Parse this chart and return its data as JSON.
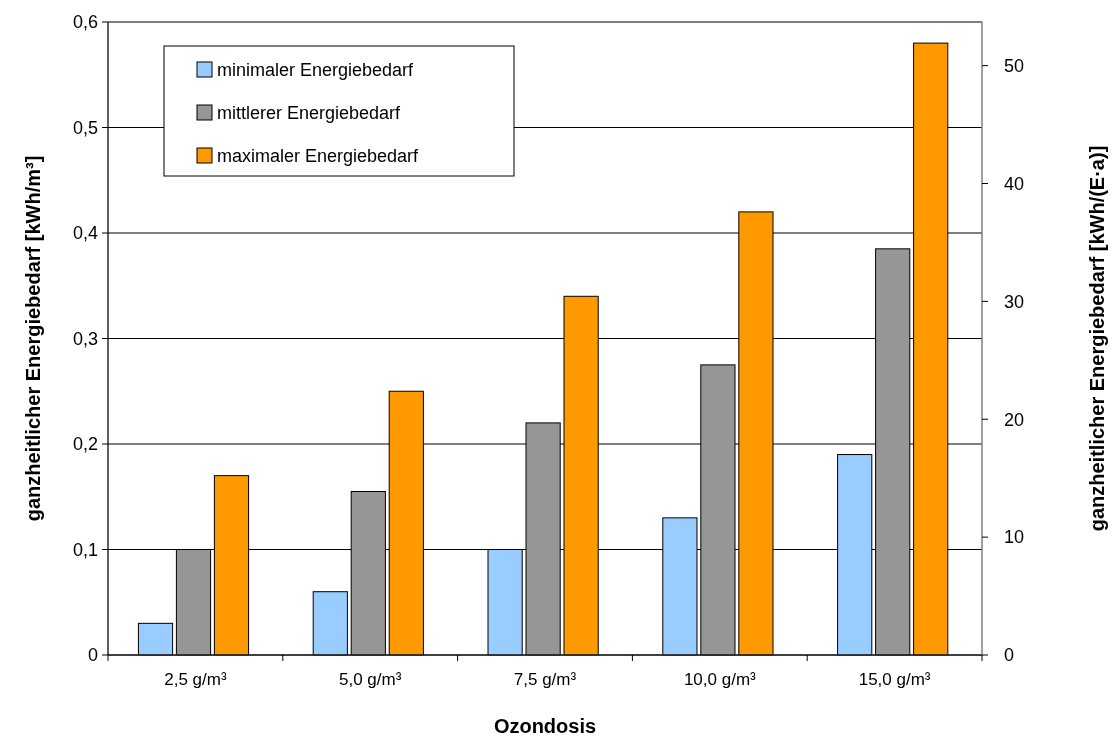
{
  "chart_data": {
    "type": "bar",
    "xlabel": "Ozondosis",
    "ylabel": "ganzheitlicher Energiebedarf  [kWh/m³]",
    "y2label": "ganzheitlicher Energiebedarf  [kWh/(E·a)]",
    "categories": [
      "2,5 g/m³",
      "5,0 g/m³",
      "7,5 g/m³",
      "10,0 g/m³",
      "15,0 g/m³"
    ],
    "series": [
      {
        "name": "minimaler Energiebedarf",
        "color": "#99ccff",
        "values": [
          0.03,
          0.06,
          0.1,
          0.13,
          0.19
        ]
      },
      {
        "name": "mittlerer Energiebedarf",
        "color": "#969696",
        "values": [
          0.1,
          0.155,
          0.22,
          0.275,
          0.385
        ]
      },
      {
        "name": "maximaler Energiebedarf",
        "color": "#ff9900",
        "values": [
          0.17,
          0.25,
          0.34,
          0.42,
          0.58
        ]
      }
    ],
    "ylim": [
      0,
      0.6
    ],
    "yticks": [
      {
        "value": 0,
        "label": "0"
      },
      {
        "value": 0.1,
        "label": "0,1"
      },
      {
        "value": 0.2,
        "label": "0,2"
      },
      {
        "value": 0.3,
        "label": "0,3"
      },
      {
        "value": 0.4,
        "label": "0,4"
      },
      {
        "value": 0.5,
        "label": "0,5"
      },
      {
        "value": 0.6,
        "label": "0,6"
      }
    ],
    "y2lim": [
      0,
      53.7
    ],
    "y2ticks": [
      0,
      10,
      20,
      30,
      40,
      50
    ],
    "grid": "y",
    "legend": "top left"
  }
}
